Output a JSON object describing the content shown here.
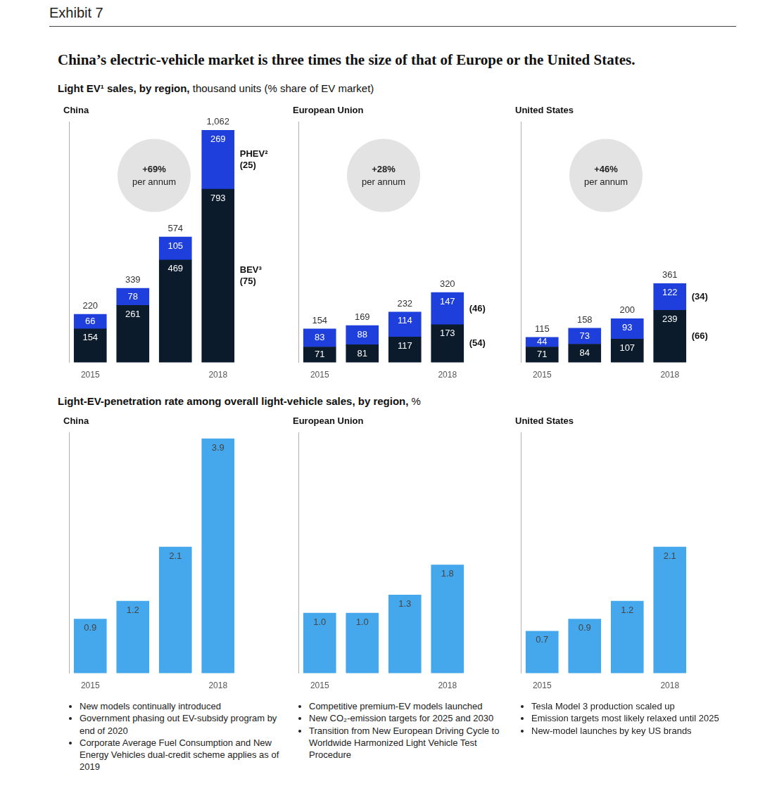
{
  "exhibit": "Exhibit 7",
  "title": "China’s electric-vehicle market is three times the size of that of Europe or the United States.",
  "subtitles": [
    {
      "bold": "Light EV¹ sales, by region,",
      "text": "thousand units (% share of EV market)"
    },
    {
      "bold": "Light-EV-penetration rate among overall light-vehicle sales, by region,",
      "text": "%"
    }
  ],
  "chart_data": [
    {
      "type": "bar",
      "title": "China",
      "categories": [
        "2015",
        null,
        null,
        "2018"
      ],
      "stacked": true,
      "data_labels": true,
      "grid": false,
      "tick_labels": "x",
      "ylim": [
        0,
        1100
      ],
      "series": [
        {
          "name": "BEV³",
          "share_label": "(75)",
          "color": "#0b1b2c",
          "values": [
            154,
            261,
            469,
            793
          ]
        },
        {
          "name": "PHEV²",
          "share_label": "(25)",
          "color": "#1e3fdc",
          "values": [
            66,
            78,
            105,
            269
          ]
        }
      ],
      "totals": [
        220,
        339,
        574,
        1062
      ],
      "total_labels": [
        "220",
        "339",
        "574",
        "1,062"
      ],
      "annotation": {
        "text": "+69%",
        "subtext": "per annum"
      }
    },
    {
      "type": "bar",
      "title": "European Union",
      "categories": [
        "2015",
        null,
        null,
        "2018"
      ],
      "stacked": true,
      "data_labels": true,
      "grid": false,
      "tick_labels": "x",
      "ylim": [
        0,
        1100
      ],
      "series": [
        {
          "share_label": "(54)",
          "color": "#0b1b2c",
          "values": [
            71,
            81,
            117,
            173
          ]
        },
        {
          "share_label": "(46)",
          "color": "#1e3fdc",
          "values": [
            83,
            88,
            114,
            147
          ]
        }
      ],
      "totals": [
        154,
        169,
        232,
        320
      ],
      "total_labels": [
        "154",
        "169",
        "232",
        "320"
      ],
      "annotation": {
        "text": "+28%",
        "subtext": "per annum"
      }
    },
    {
      "type": "bar",
      "title": "United States",
      "categories": [
        "2015",
        null,
        null,
        "2018"
      ],
      "stacked": true,
      "data_labels": true,
      "grid": false,
      "tick_labels": "x",
      "ylim": [
        0,
        1100
      ],
      "series": [
        {
          "share_label": "(66)",
          "color": "#0b1b2c",
          "values": [
            71,
            84,
            107,
            239
          ]
        },
        {
          "share_label": "(34)",
          "color": "#1e3fdc",
          "values": [
            44,
            73,
            93,
            122
          ]
        }
      ],
      "totals": [
        115,
        158,
        200,
        361
      ],
      "total_labels": [
        "115",
        "158",
        "200",
        "361"
      ],
      "annotation": {
        "text": "+46%",
        "subtext": "per annum"
      }
    },
    {
      "type": "bar",
      "title": "China",
      "categories": [
        "2015",
        null,
        null,
        "2018"
      ],
      "values": [
        0.9,
        1.2,
        2.1,
        3.9
      ],
      "value_labels": [
        "0.9",
        "1.2",
        "2.1",
        "3.9"
      ],
      "color": "#45a8ec",
      "data_labels": true,
      "grid": false,
      "tick_labels": "x",
      "ylim": [
        0,
        4
      ],
      "notes": [
        "New models continually introduced",
        "Government phasing out EV-subsidy program by end of 2020",
        "Corporate Average Fuel Consumption and New Energy Vehicles dual-credit scheme applies as of 2019"
      ]
    },
    {
      "type": "bar",
      "title": "European Union",
      "categories": [
        "2015",
        null,
        null,
        "2018"
      ],
      "values": [
        1.0,
        1.0,
        1.3,
        1.8
      ],
      "value_labels": [
        "1.0",
        "1.0",
        "1.3",
        "1.8"
      ],
      "color": "#45a8ec",
      "data_labels": true,
      "grid": false,
      "tick_labels": "x",
      "ylim": [
        0,
        4
      ],
      "notes": [
        "Competitive premium-EV models launched",
        "New CO₂-emission targets for 2025 and 2030",
        "Transition from New European Driving Cycle to Worldwide Harmonized Light Vehicle Test Procedure"
      ]
    },
    {
      "type": "bar",
      "title": "United States",
      "categories": [
        "2015",
        null,
        null,
        "2018"
      ],
      "values": [
        0.7,
        0.9,
        1.2,
        2.1
      ],
      "value_labels": [
        "0.7",
        "0.9",
        "1.2",
        "2.1"
      ],
      "color": "#45a8ec",
      "data_labels": true,
      "grid": false,
      "tick_labels": "x",
      "ylim": [
        0,
        4
      ],
      "notes": [
        "Tesla Model 3 production scaled up",
        "Emission targets most likely relaxed until 2025",
        "New-model launches by key US brands"
      ]
    }
  ]
}
